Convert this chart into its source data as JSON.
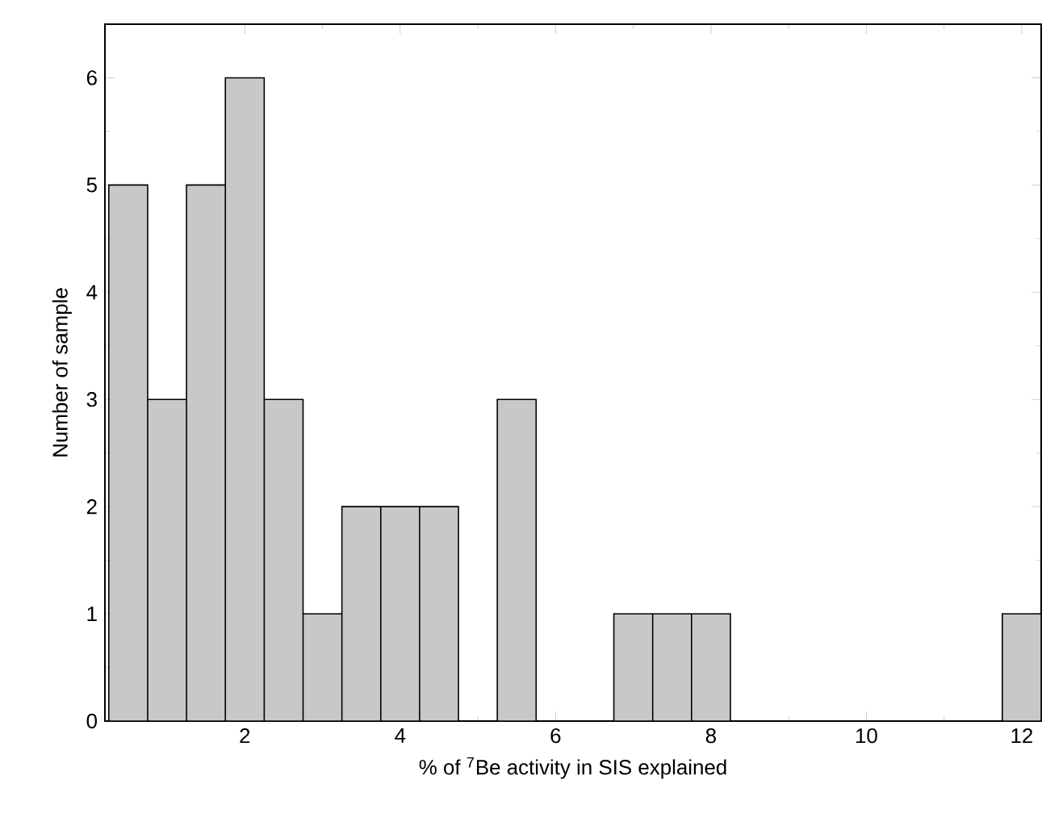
{
  "chart_data": {
    "type": "histogram",
    "xlabel": "% of $^{7}$Be activity in SIS explained",
    "ylabel": "Number of sample",
    "bins": [
      0.25,
      0.75,
      1.25,
      1.75,
      2.25,
      2.75,
      3.25,
      3.75,
      4.25,
      4.75,
      5.25,
      5.75,
      6.25,
      6.75,
      7.25,
      7.75,
      8.25,
      8.75,
      9.25,
      9.75,
      10.25,
      10.75,
      11.25,
      11.75,
      12.25
    ],
    "values": [
      5,
      3,
      5,
      6,
      3,
      1,
      2,
      2,
      2,
      0,
      3,
      0,
      0,
      1,
      1,
      1,
      0,
      0,
      0,
      0,
      0,
      0,
      0,
      1
    ],
    "color": "#c8c8c8",
    "xlim": [
      0.2,
      12.25
    ],
    "xticks": [
      2,
      4,
      6,
      8,
      10,
      12
    ],
    "ylim": [
      0,
      6.5
    ],
    "yticks": [
      0,
      1,
      2,
      3,
      4,
      5,
      6
    ],
    "grid": false
  }
}
